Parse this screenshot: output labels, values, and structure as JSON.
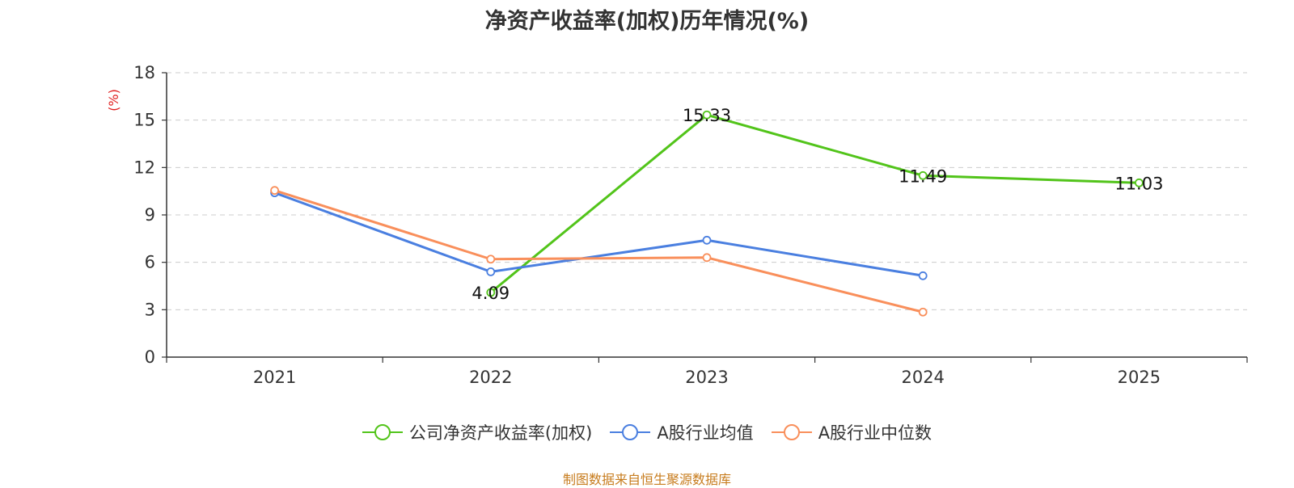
{
  "chart_data": {
    "type": "line",
    "title": "净资产收益率(加权)历年情况(%)",
    "ylabel": "(%)",
    "xlabel": "",
    "categories": [
      "2021",
      "2022",
      "2023",
      "2024",
      "2025"
    ],
    "ylim": [
      0,
      18
    ],
    "yticks": [
      0,
      3,
      6,
      9,
      12,
      15,
      18
    ],
    "grid": true,
    "legend_position": "bottom",
    "series": [
      {
        "name": "公司净资产收益率(加权)",
        "color": "#52c41a",
        "values": [
          null,
          4.09,
          15.33,
          11.49,
          11.03
        ],
        "labels": [
          null,
          "4.09",
          "15.33",
          "11.49",
          "11.03"
        ]
      },
      {
        "name": "A股行业均值",
        "color": "#4a7fe0",
        "values": [
          10.4,
          5.4,
          7.4,
          5.15,
          null
        ]
      },
      {
        "name": "A股行业中位数",
        "color": "#f98f5b",
        "values": [
          10.55,
          6.2,
          6.3,
          2.85,
          null
        ]
      }
    ]
  },
  "source_note": "制图数据来自恒生聚源数据库"
}
